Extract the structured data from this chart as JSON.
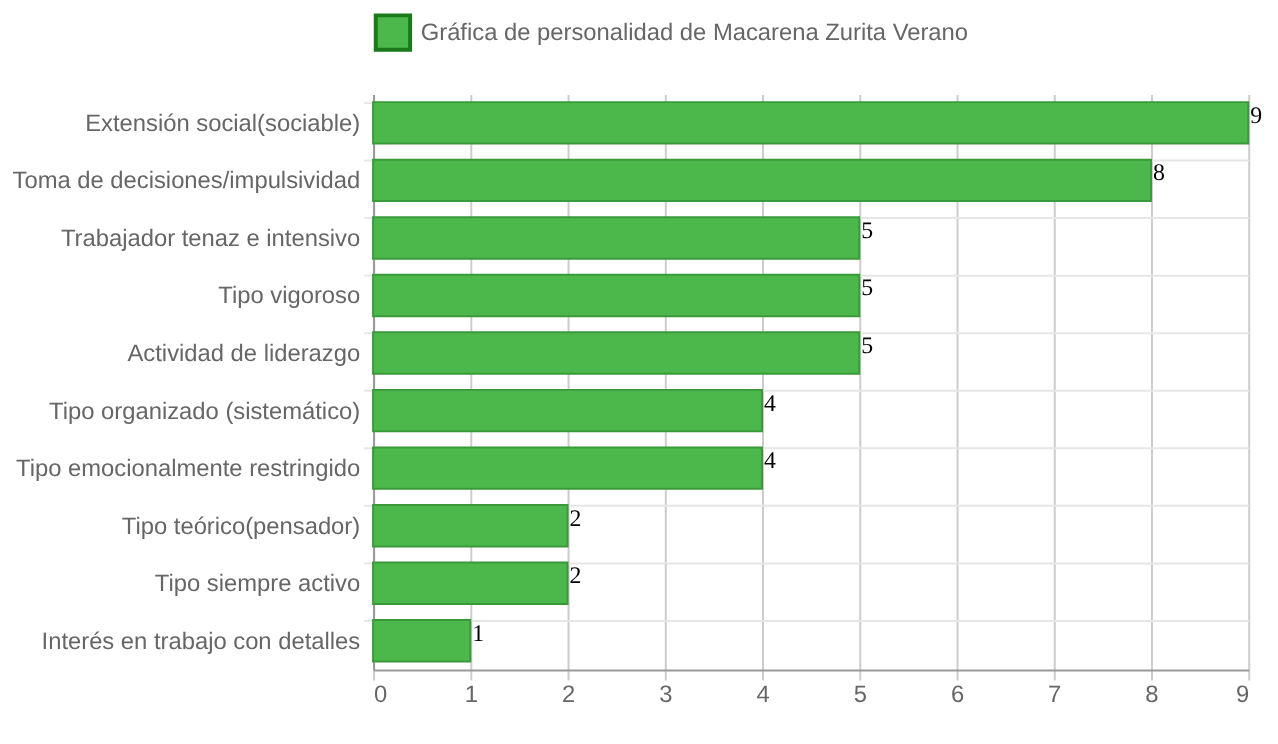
{
  "chart_data": {
    "type": "bar",
    "orientation": "horizontal",
    "categories": [
      "Extensión social(sociable)",
      "Toma de decisiones/impulsividad",
      "Trabajador tenaz e intensivo",
      "Tipo vigoroso",
      "Actividad de liderazgo",
      "Tipo organizado (sistemático)",
      "Tipo emocionalmente restringido",
      "Tipo teórico(pensador)",
      "Tipo siempre activo",
      "Interés en trabajo con detalles"
    ],
    "series": [
      {
        "name": "Gráfica de personalidad de Macarena Zurita Verano",
        "color": "#4cb84c",
        "values": [
          9,
          8,
          5,
          5,
          5,
          4,
          4,
          2,
          2,
          1
        ]
      }
    ],
    "xlim": [
      0,
      9
    ],
    "xticks": [
      0,
      1,
      2,
      3,
      4,
      5,
      6,
      7,
      8,
      9
    ],
    "grid": true,
    "legend": "top",
    "data_labels": true
  }
}
